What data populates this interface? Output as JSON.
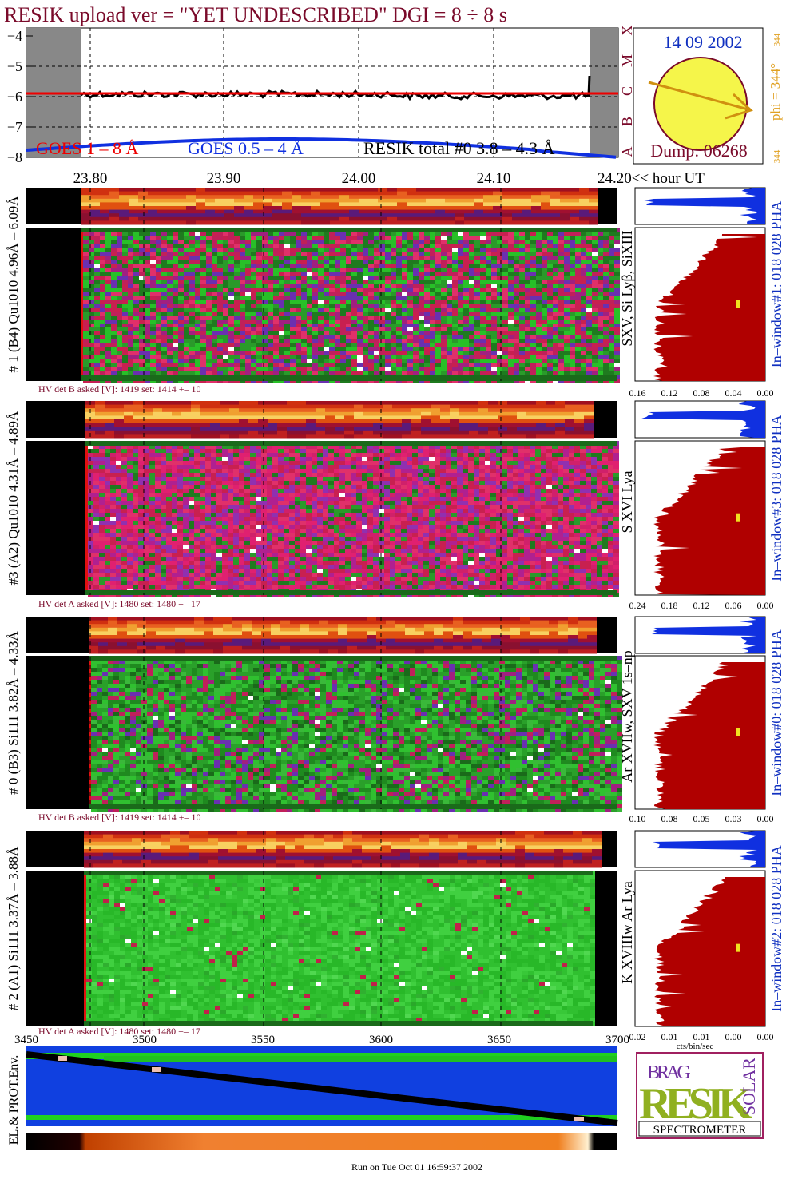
{
  "header": {
    "title": "RESIK upload ver = \"YET UNDESCRIBED\"  DGI =   8 ÷   8 s"
  },
  "lightcurve": {
    "yticks": [
      "−4",
      "−5",
      "−6",
      "−7",
      "−8"
    ],
    "legend": [
      "GOES 1 – 8 Å",
      "GOES 0.5 – 4 Å",
      "RESIK total #0  3.8 – 4.3 Å"
    ],
    "classes": [
      "A",
      "B",
      "C",
      "M",
      "X"
    ]
  },
  "sun": {
    "date": "14 09 2002",
    "dump": "Dump: 06268",
    "phi": "phi = 344°",
    "phi_top": "344",
    "phi_bottom": "344"
  },
  "time_axis": {
    "ticks": [
      "23.80",
      "23.90",
      "24.00",
      "24.10"
    ],
    "last": "24.20<< hour UT"
  },
  "detectors": [
    {
      "label": "# 1 (B4) Qu1010 4.96Å – 6.09Å",
      "hv": "HV det B asked [V]:  1419 set:  1414 +–   10",
      "line": "SXV, Si Lyβ, SiXIII",
      "window": "In–window#1:  018 028 PHA",
      "ticks": [
        "0.16",
        "0.12",
        "0.08",
        "0.04",
        "0.00"
      ]
    },
    {
      "label": "#3 (A2) Qu1010  4.31Å – 4.89Å",
      "hv": "HV det A asked [V]:  1480 set:  1480 +–   17",
      "line": "S XVI Lya",
      "window": "In–window#3:  018 028 PHA",
      "ticks": [
        "0.24",
        "0.18",
        "0.12",
        "0.06",
        "0.00"
      ]
    },
    {
      "label": "# 0 (B3) Si111  3.82Å – 4.33Å",
      "hv": "HV det B asked [V]:  1419 set:  1414 +–   10",
      "line": "Ar XVIIw,  SXV  1s–np",
      "window": "In–window#0:  018 028 PHA",
      "ticks": [
        "0.10",
        "0.08",
        "0.05",
        "0.03",
        "0.00"
      ]
    },
    {
      "label": "# 2 (A1) Si111  3.37Å – 3.88Å",
      "hv": "HV det A asked [V]:  1480 set:  1480 +–   17",
      "line": "K XVIIIw  Ar Lya",
      "window": "In–window#2:  018 028 PHA",
      "ticks": [
        "0.02",
        "0.01",
        "0.01",
        "0.00",
        "0.00"
      ]
    }
  ],
  "channel_axis": {
    "ticks": [
      "3450",
      "3500",
      "3550",
      "3600",
      "3650",
      "3700"
    ],
    "unit": "cts/bin/sec"
  },
  "env": {
    "label": "EL.& PROT.Env."
  },
  "logo": {
    "top": "BRAG",
    "main": "RESIK",
    "side": "SOLAR",
    "bottom": "SPECTROMETER"
  },
  "footer": "Run on Tue Oct 01 16:59:37 2002"
}
